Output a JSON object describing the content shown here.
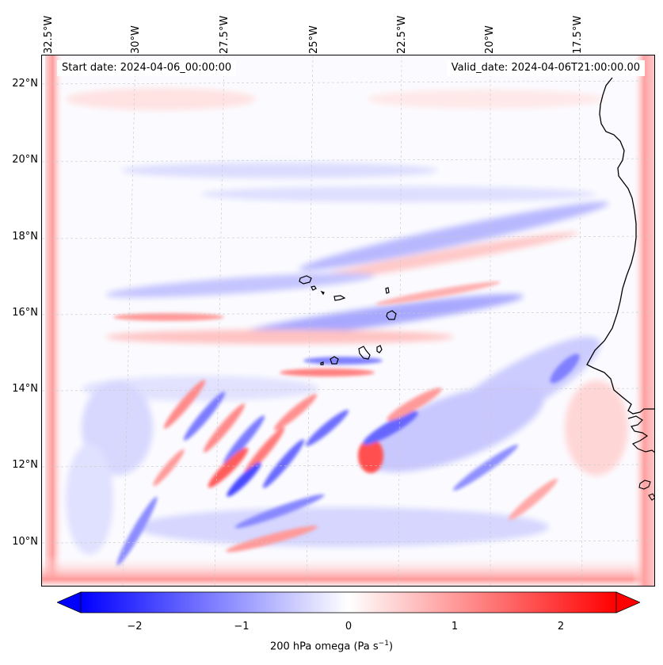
{
  "map": {
    "start_date": "Start date: 2024-04-06_00:00:00",
    "valid_date": "Valid_date: 2024-04-06T21:00:00.00",
    "longitude_labels": [
      "32.5°W",
      "30°W",
      "27.5°W",
      "25°W",
      "22.5°W",
      "20°W",
      "17.5°W"
    ],
    "latitude_labels": [
      "22°N",
      "20°N",
      "18°N",
      "16°N",
      "14°N",
      "12°N",
      "10°N"
    ],
    "variable": "omega",
    "level": "200 hPa",
    "colormap": "bwr",
    "colors": {
      "negative": "#0000ff",
      "zero": "#ffffff",
      "positive": "#ff0000",
      "coastline": "#000000",
      "grid": "#c0c0c0"
    },
    "features": [
      "Cape Verde islands",
      "West African coastline (Senegal, Mauritania, Guinea-Bissau)"
    ]
  },
  "colorbar": {
    "min": -2.5,
    "max": 2.5,
    "tick_labels": [
      "−2",
      "−1",
      "0",
      "1",
      "2"
    ],
    "label_text": "200 hPa omega (Pa s",
    "label_exponent": "−1",
    "label_close": ")",
    "extend": "both"
  }
}
